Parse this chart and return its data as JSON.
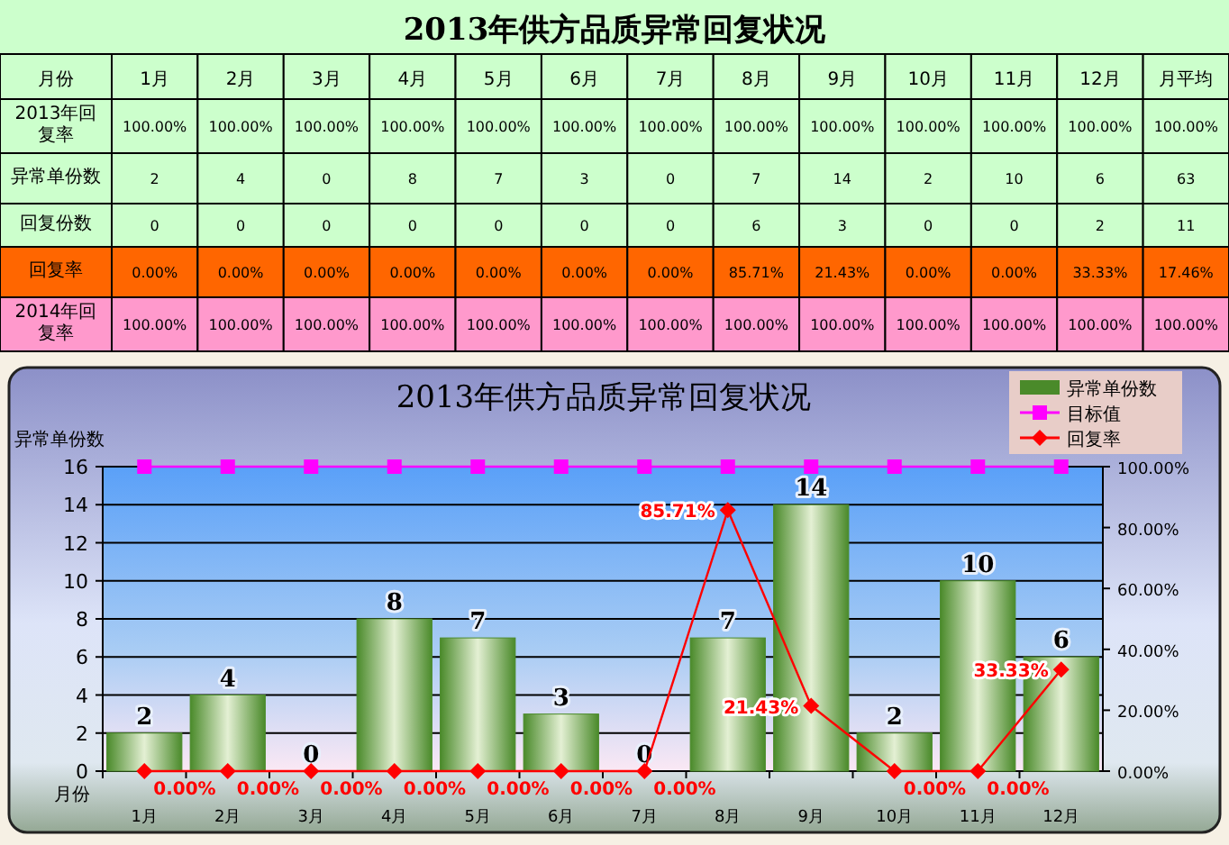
{
  "chart_data": [
    {
      "type": "heatmap",
      "title": "2013年供方品质异常回复状况",
      "xlabel": "月份",
      "categories": [
        "1月",
        "2月",
        "3月",
        "4月",
        "5月",
        "6月",
        "7月",
        "8月",
        "9月",
        "10月",
        "11月",
        "12月",
        "月平均"
      ],
      "y_categories": [
        "2013年回复率",
        "异常单份数",
        "回复份数",
        "回复率",
        "2014年回复率"
      ],
      "colors": [
        "#ccffcc",
        "#ccffcc",
        "#ccffcc",
        "#ff6600",
        "#ff99cc"
      ],
      "cells": [
        [
          100,
          100,
          100,
          100,
          100,
          100,
          100,
          100,
          100,
          100,
          100,
          100,
          100
        ],
        [
          2,
          4,
          0,
          8,
          7,
          3,
          0,
          7,
          14,
          2,
          10,
          6,
          63
        ],
        [
          0,
          0,
          0,
          0,
          0,
          0,
          0,
          6,
          3,
          0,
          0,
          2,
          11
        ],
        [
          0,
          0,
          0,
          0,
          0,
          0,
          0,
          85.71,
          21.43,
          0,
          0,
          33.33,
          17.46
        ],
        [
          100,
          100,
          100,
          100,
          100,
          100,
          100,
          100,
          100,
          100,
          100,
          100,
          100
        ]
      ],
      "cell_labels": [
        [
          "100.00%",
          "100.00%",
          "100.00%",
          "100.00%",
          "100.00%",
          "100.00%",
          "100.00%",
          "100.00%",
          "100.00%",
          "100.00%",
          "100.00%",
          "100.00%",
          "100.00%"
        ],
        [
          "2",
          "4",
          "0",
          "8",
          "7",
          "3",
          "0",
          "7",
          "14",
          "2",
          "10",
          "6",
          "63"
        ],
        [
          "0",
          "0",
          "0",
          "0",
          "0",
          "0",
          "0",
          "6",
          "3",
          "0",
          "0",
          "2",
          "11"
        ],
        [
          "0.00%",
          "0.00%",
          "0.00%",
          "0.00%",
          "0.00%",
          "0.00%",
          "0.00%",
          "85.71%",
          "21.43%",
          "0.00%",
          "0.00%",
          "33.33%",
          "17.46%"
        ],
        [
          "100.00%",
          "100.00%",
          "100.00%",
          "100.00%",
          "100.00%",
          "100.00%",
          "100.00%",
          "100.00%",
          "100.00%",
          "100.00%",
          "100.00%",
          "100.00%",
          "100.00%"
        ]
      ]
    },
    {
      "type": "bar",
      "title": "2013年供方品质异常回复状况",
      "xlabel": "月份",
      "ylabel": "异常单份数",
      "categories": [
        "1月",
        "2月",
        "3月",
        "4月",
        "5月",
        "6月",
        "7月",
        "8月",
        "9月",
        "10月",
        "11月",
        "12月"
      ],
      "series": [
        {
          "name": "异常单份数",
          "type": "bar",
          "color": "#4a8a2a",
          "values": [
            2,
            4,
            0,
            8,
            7,
            3,
            0,
            7,
            14,
            2,
            10,
            6
          ],
          "value_labels": [
            "2",
            "4",
            "0",
            "8",
            "7",
            "3",
            "0",
            "7",
            "14",
            "2",
            "10",
            "6"
          ]
        },
        {
          "name": "目标值",
          "type": "line",
          "axis": "y2",
          "color": "#ff00ff",
          "marker": "square",
          "values": [
            100,
            100,
            100,
            100,
            100,
            100,
            100,
            100,
            100,
            100,
            100,
            100
          ]
        },
        {
          "name": "回复率",
          "type": "line",
          "axis": "y2",
          "color": "#ff0000",
          "marker": "diamond",
          "values": [
            0,
            0,
            0,
            0,
            0,
            0,
            0,
            85.71,
            21.43,
            0,
            0,
            33.33
          ],
          "value_labels": [
            "0.00%",
            "0.00%",
            "0.00%",
            "0.00%",
            "0.00%",
            "0.00%",
            "0.00%",
            "85.71%",
            "21.43%",
            "0.00%",
            "0.00%",
            "33.33%"
          ]
        }
      ],
      "ylim": [
        0,
        16
      ],
      "yticks": [
        0,
        2,
        4,
        6,
        8,
        10,
        12,
        14,
        16
      ],
      "y2lim": [
        0,
        100
      ],
      "y2ticks": [
        {
          "value": 0,
          "label": "0.00%"
        },
        {
          "value": 20,
          "label": "20.00%"
        },
        {
          "value": 40,
          "label": "40.00%"
        },
        {
          "value": 60,
          "label": "60.00%"
        },
        {
          "value": 80,
          "label": "80.00%"
        },
        {
          "value": 100,
          "label": "100.00%"
        }
      ],
      "grid": "y",
      "legend": "top right"
    }
  ]
}
